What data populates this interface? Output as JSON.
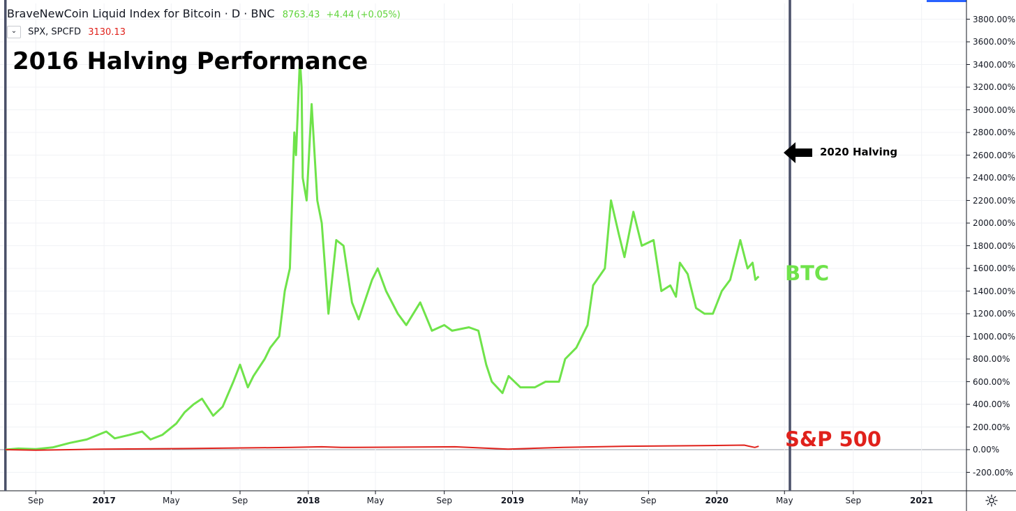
{
  "legend": {
    "main_symbol": "BraveNewCoin Liquid Index for Bitcoin · D · BNC",
    "main_value": "8763.43",
    "main_change": "+4.44 (+0.05%)",
    "compare_symbol": "SPX, SPCFD",
    "compare_value": "3130.13",
    "collapse_icon": "chevron-down-icon"
  },
  "annotations": {
    "title": "2016 Halving Performance",
    "halving_label": "2020 Halving",
    "btc_label": "BTC",
    "sp_label": "S&P 500"
  },
  "axes": {
    "y_ticks": [
      "3800.00%",
      "3600.00%",
      "3400.00%",
      "3200.00%",
      "3000.00%",
      "2800.00%",
      "2600.00%",
      "2400.00%",
      "2200.00%",
      "2000.00%",
      "1800.00%",
      "1600.00%",
      "1400.00%",
      "1200.00%",
      "1000.00%",
      "800.00%",
      "600.00%",
      "400.00%",
      "200.00%",
      "0.00%",
      "-200.00%"
    ],
    "x_ticks": [
      {
        "label": "Sep",
        "year": false
      },
      {
        "label": "2017",
        "year": true
      },
      {
        "label": "May",
        "year": false
      },
      {
        "label": "Sep",
        "year": false
      },
      {
        "label": "2018",
        "year": true
      },
      {
        "label": "May",
        "year": false
      },
      {
        "label": "Sep",
        "year": false
      },
      {
        "label": "2019",
        "year": true
      },
      {
        "label": "May",
        "year": false
      },
      {
        "label": "Sep",
        "year": false
      },
      {
        "label": "2020",
        "year": true
      },
      {
        "label": "May",
        "year": false
      },
      {
        "label": "Sep",
        "year": false
      },
      {
        "label": "2021",
        "year": true
      }
    ],
    "settings_icon": "gear-icon"
  },
  "colors": {
    "btc": "#6fe34a",
    "sp500": "#e0211b",
    "halving_line": "#4a5068",
    "grid": "#f0f2f5",
    "accent": "#2962ff"
  },
  "chart_data": {
    "type": "line",
    "title": "2016 Halving Performance",
    "ylabel": "",
    "xlabel": "",
    "y_unit": "%",
    "ylim": [
      -300,
      3900
    ],
    "x_range": [
      "2016-07-09",
      "2021-03-01"
    ],
    "grid": true,
    "halving_markers": [
      "2016-07-09",
      "2020-05-11"
    ],
    "series": [
      {
        "name": "BTC",
        "color": "#6fe34a",
        "points": [
          [
            "2016-07-09",
            0
          ],
          [
            "2016-08-01",
            10
          ],
          [
            "2016-09-01",
            5
          ],
          [
            "2016-10-01",
            20
          ],
          [
            "2016-11-01",
            60
          ],
          [
            "2016-12-01",
            90
          ],
          [
            "2017-01-05",
            160
          ],
          [
            "2017-01-20",
            100
          ],
          [
            "2017-02-15",
            130
          ],
          [
            "2017-03-10",
            160
          ],
          [
            "2017-03-25",
            90
          ],
          [
            "2017-04-15",
            130
          ],
          [
            "2017-05-10",
            230
          ],
          [
            "2017-05-25",
            330
          ],
          [
            "2017-06-10",
            400
          ],
          [
            "2017-06-25",
            450
          ],
          [
            "2017-07-15",
            300
          ],
          [
            "2017-08-01",
            380
          ],
          [
            "2017-08-20",
            600
          ],
          [
            "2017-09-01",
            750
          ],
          [
            "2017-09-15",
            550
          ],
          [
            "2017-09-25",
            650
          ],
          [
            "2017-10-15",
            800
          ],
          [
            "2017-10-25",
            900
          ],
          [
            "2017-11-10",
            1000
          ],
          [
            "2017-11-20",
            1400
          ],
          [
            "2017-11-29",
            1600
          ],
          [
            "2017-12-07",
            2800
          ],
          [
            "2017-12-10",
            2600
          ],
          [
            "2017-12-17",
            3450
          ],
          [
            "2017-12-20",
            3200
          ],
          [
            "2017-12-22",
            2400
          ],
          [
            "2017-12-29",
            2200
          ],
          [
            "2018-01-07",
            3050
          ],
          [
            "2018-01-17",
            2200
          ],
          [
            "2018-01-25",
            2000
          ],
          [
            "2018-02-06",
            1200
          ],
          [
            "2018-02-20",
            1850
          ],
          [
            "2018-03-05",
            1800
          ],
          [
            "2018-03-20",
            1300
          ],
          [
            "2018-04-01",
            1150
          ],
          [
            "2018-04-25",
            1500
          ],
          [
            "2018-05-05",
            1600
          ],
          [
            "2018-05-20",
            1400
          ],
          [
            "2018-06-10",
            1200
          ],
          [
            "2018-06-25",
            1100
          ],
          [
            "2018-07-20",
            1300
          ],
          [
            "2018-08-10",
            1050
          ],
          [
            "2018-09-01",
            1100
          ],
          [
            "2018-09-15",
            1050
          ],
          [
            "2018-10-15",
            1080
          ],
          [
            "2018-11-01",
            1050
          ],
          [
            "2018-11-15",
            750
          ],
          [
            "2018-11-25",
            600
          ],
          [
            "2018-12-14",
            500
          ],
          [
            "2018-12-25",
            650
          ],
          [
            "2019-01-15",
            550
          ],
          [
            "2019-02-10",
            550
          ],
          [
            "2019-03-01",
            600
          ],
          [
            "2019-03-25",
            600
          ],
          [
            "2019-04-05",
            800
          ],
          [
            "2019-04-25",
            900
          ],
          [
            "2019-05-15",
            1100
          ],
          [
            "2019-05-25",
            1450
          ],
          [
            "2019-06-15",
            1600
          ],
          [
            "2019-06-26",
            2200
          ],
          [
            "2019-07-10",
            1900
          ],
          [
            "2019-07-20",
            1700
          ],
          [
            "2019-08-05",
            2100
          ],
          [
            "2019-08-20",
            1800
          ],
          [
            "2019-09-10",
            1850
          ],
          [
            "2019-09-24",
            1400
          ],
          [
            "2019-10-10",
            1450
          ],
          [
            "2019-10-20",
            1350
          ],
          [
            "2019-10-27",
            1650
          ],
          [
            "2019-11-10",
            1550
          ],
          [
            "2019-11-25",
            1250
          ],
          [
            "2019-12-10",
            1200
          ],
          [
            "2019-12-25",
            1200
          ],
          [
            "2020-01-10",
            1400
          ],
          [
            "2020-01-25",
            1500
          ],
          [
            "2020-02-12",
            1850
          ],
          [
            "2020-02-25",
            1600
          ],
          [
            "2020-03-05",
            1650
          ],
          [
            "2020-03-10",
            1500
          ],
          [
            "2020-03-16",
            1530
          ]
        ]
      },
      {
        "name": "S&P 500",
        "color": "#e0211b",
        "points": [
          [
            "2016-07-09",
            0
          ],
          [
            "2016-09-01",
            -5
          ],
          [
            "2016-11-01",
            0
          ],
          [
            "2017-01-01",
            5
          ],
          [
            "2017-06-01",
            10
          ],
          [
            "2017-12-01",
            20
          ],
          [
            "2018-01-25",
            25
          ],
          [
            "2018-03-01",
            20
          ],
          [
            "2018-09-20",
            25
          ],
          [
            "2018-12-24",
            5
          ],
          [
            "2019-04-01",
            20
          ],
          [
            "2019-07-25",
            30
          ],
          [
            "2019-12-01",
            35
          ],
          [
            "2020-02-19",
            40
          ],
          [
            "2020-02-28",
            30
          ],
          [
            "2020-03-09",
            20
          ],
          [
            "2020-03-16",
            30
          ]
        ]
      }
    ]
  }
}
